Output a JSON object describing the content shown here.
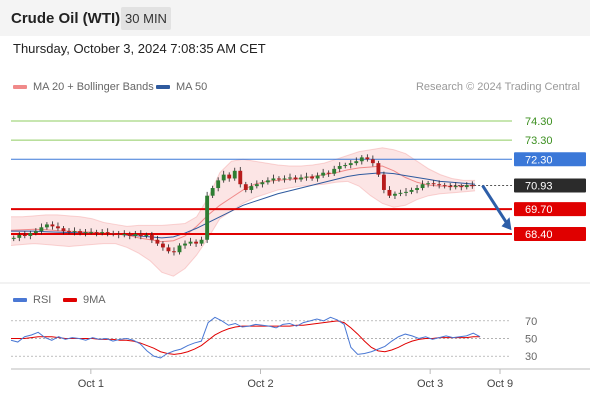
{
  "header": {
    "title": "Crude Oil (WTI)",
    "timeframe": "30 MIN"
  },
  "datetime": "Thursday, October 3, 2024 7:08:35 AM CET",
  "credit": "Research © 2024 Trading Central",
  "colors": {
    "bollinger": "#f08a8a",
    "ma50": "#2f5a9e",
    "resistance": "#8fcc62",
    "blue_level": "#3b78d8",
    "support": "#e00000",
    "price_badge": "#2b2b2b",
    "candle_up": "#2e7d32",
    "candle_down": "#b71c1c",
    "arrow": "#2d5ea8"
  },
  "chart_data": [
    {
      "type": "candlestick",
      "name": "price",
      "legend": [
        {
          "label": "MA 20 + Bollinger Bands",
          "color": "#f08a8a"
        },
        {
          "label": "MA 50",
          "color": "#2f5a9e"
        }
      ],
      "ylim": [
        66.0,
        75.5
      ],
      "xlim": [
        0,
        100
      ],
      "levels": [
        {
          "value": 74.3,
          "label": "74.30",
          "kind": "resistance"
        },
        {
          "value": 73.3,
          "label": "73.30",
          "kind": "resistance"
        },
        {
          "value": 72.3,
          "label": "72.30",
          "kind": "pivot"
        },
        {
          "value": 70.93,
          "label": "70.93",
          "kind": "last"
        },
        {
          "value": 69.7,
          "label": "69.70",
          "kind": "support"
        },
        {
          "value": 68.4,
          "label": "68.40",
          "kind": "support"
        }
      ],
      "close": [
        68.2,
        68.35,
        68.3,
        68.45,
        68.55,
        68.75,
        68.9,
        68.8,
        68.7,
        68.55,
        68.5,
        68.55,
        68.45,
        68.5,
        68.5,
        68.45,
        68.5,
        68.45,
        68.4,
        68.35,
        68.4,
        68.3,
        68.4,
        68.3,
        68.35,
        68.1,
        67.9,
        67.7,
        67.5,
        67.45,
        67.8,
        67.9,
        68.0,
        67.9,
        68.1,
        70.4,
        70.8,
        71.2,
        71.5,
        71.3,
        71.7,
        71.0,
        70.7,
        70.9,
        71.0,
        71.1,
        71.2,
        71.3,
        71.25,
        71.3,
        71.35,
        71.25,
        71.35,
        71.4,
        71.3,
        71.45,
        71.6,
        71.55,
        71.8,
        71.95,
        72.0,
        72.1,
        72.2,
        72.4,
        72.3,
        72.1,
        71.5,
        70.7,
        70.4,
        70.5,
        70.55,
        70.6,
        70.7,
        70.8,
        71.0,
        71.05,
        71.0,
        70.95,
        70.9,
        70.85,
        70.9,
        70.85,
        70.95,
        70.93
      ],
      "ma20_upper": [
        69.3,
        69.3,
        69.35,
        69.4,
        69.4,
        69.35,
        69.3,
        69.2,
        69.0,
        68.9,
        68.8,
        68.85,
        68.85,
        68.85,
        68.9,
        68.95,
        69.3,
        70.3,
        71.6,
        72.2,
        72.3,
        72.2,
        72.1,
        72.0,
        71.95,
        71.95,
        72.0,
        72.1,
        72.3,
        72.5,
        72.7,
        72.8,
        72.9,
        72.8,
        72.6,
        72.2,
        71.8,
        71.5,
        71.3,
        71.2,
        71.2
      ],
      "ma20_mid": [
        68.6,
        68.62,
        68.65,
        68.62,
        68.58,
        68.55,
        68.52,
        68.5,
        68.45,
        68.4,
        68.35,
        68.2,
        68.1,
        68.0,
        68.05,
        68.3,
        68.8,
        69.4,
        69.9,
        70.3,
        70.7,
        71.0,
        71.15,
        71.2,
        71.25,
        71.3,
        71.4,
        71.5,
        71.6,
        71.75,
        71.85,
        71.9,
        71.95,
        71.7,
        71.35,
        71.1,
        70.95,
        70.9,
        70.9,
        70.92,
        70.93
      ],
      "ma20_lower": [
        67.8,
        67.85,
        67.9,
        67.85,
        67.8,
        67.75,
        67.8,
        67.85,
        67.9,
        67.9,
        67.7,
        67.4,
        67.0,
        66.4,
        66.2,
        66.6,
        67.3,
        68.2,
        69.2,
        69.6,
        70.0,
        70.3,
        70.5,
        70.7,
        70.8,
        70.9,
        70.95,
        71.0,
        71.1,
        71.15,
        70.9,
        70.4,
        70.0,
        69.8,
        69.9,
        70.2,
        70.4,
        70.5,
        70.55,
        70.6,
        70.65
      ],
      "ma50": [
        68.55,
        68.55,
        68.55,
        68.52,
        68.5,
        68.48,
        68.46,
        68.44,
        68.42,
        68.4,
        68.35,
        68.3,
        68.25,
        68.2,
        68.25,
        68.45,
        68.7,
        69.0,
        69.3,
        69.6,
        69.9,
        70.1,
        70.3,
        70.5,
        70.65,
        70.8,
        70.95,
        71.1,
        71.25,
        71.4,
        71.5,
        71.55,
        71.6,
        71.55,
        71.45,
        71.35,
        71.25,
        71.15,
        71.1,
        71.05,
        71.0
      ]
    },
    {
      "type": "line",
      "name": "rsi",
      "legend": [
        {
          "label": "RSI",
          "color": "#4a78d4"
        },
        {
          "label": "9MA",
          "color": "#e00000"
        }
      ],
      "ylim": [
        20,
        80
      ],
      "ticks": [
        "70",
        "50",
        "30"
      ],
      "tick_values": [
        70,
        50,
        30
      ],
      "rsi": [
        48,
        46,
        52,
        54,
        57,
        51,
        48,
        52,
        49,
        51,
        50,
        48,
        51,
        49,
        50,
        47,
        49,
        50,
        48,
        44,
        36,
        30,
        28,
        33,
        36,
        38,
        42,
        45,
        47,
        68,
        74,
        70,
        65,
        67,
        63,
        64,
        66,
        65,
        64,
        62,
        66,
        67,
        64,
        68,
        70,
        72,
        70,
        74,
        71,
        66,
        40,
        32,
        33,
        35,
        38,
        41,
        47,
        52,
        55,
        53,
        50,
        52,
        49,
        51,
        53,
        51,
        52,
        53,
        56,
        52
      ],
      "ma9": [
        50,
        50,
        50,
        51,
        52,
        52,
        52,
        51,
        50,
        50,
        50,
        50,
        50,
        49,
        49,
        49,
        48,
        48,
        47,
        45,
        42,
        39,
        35,
        33,
        32,
        33,
        35,
        38,
        42,
        48,
        54,
        58,
        61,
        63,
        64,
        64,
        64,
        64,
        64,
        64,
        64,
        64,
        65,
        65,
        66,
        67,
        68,
        69,
        70,
        68,
        62,
        55,
        47,
        40,
        36,
        35,
        37,
        40,
        44,
        47,
        49,
        50,
        50,
        51,
        51,
        51,
        51,
        51,
        52,
        52
      ]
    }
  ],
  "x_axis": {
    "labels": [
      "Oct 1",
      "Oct 2",
      "Oct 3",
      "Oct 9"
    ],
    "label_pos": [
      16,
      50,
      84,
      98
    ]
  }
}
